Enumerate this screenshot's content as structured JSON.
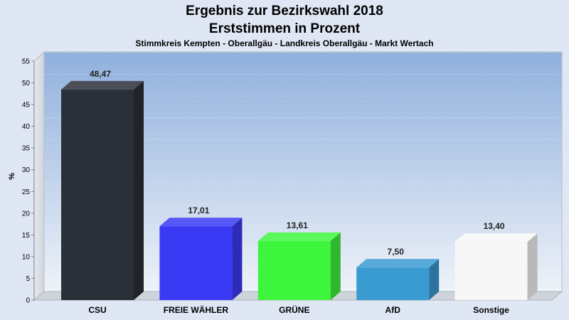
{
  "chart_data": {
    "type": "bar",
    "title_line1": "Ergebnis zur Bezirkswahl 2018",
    "title_line2": "Erststimmen in Prozent",
    "subtitle": "Stimmkreis Kempten - Oberallgäu - Landkreis Oberallgäu - Markt Wertach",
    "xlabel": "",
    "ylabel": "%",
    "ylim": [
      0,
      55
    ],
    "yticks": [
      0,
      5,
      10,
      15,
      20,
      25,
      30,
      35,
      40,
      45,
      50,
      55
    ],
    "grid": true,
    "categories": [
      "CSU",
      "FREIE WÄHLER",
      "GRÜNE",
      "AfD",
      "Sonstige"
    ],
    "values": [
      48.47,
      17.01,
      13.61,
      7.5,
      13.4
    ],
    "value_labels": [
      "48,47",
      "17,01",
      "13,61",
      "7,50",
      "13,40"
    ],
    "colors": [
      "#2b2f38",
      "#3a3af5",
      "#3ef53e",
      "#3a9bd2",
      "#f7f7f7"
    ]
  }
}
